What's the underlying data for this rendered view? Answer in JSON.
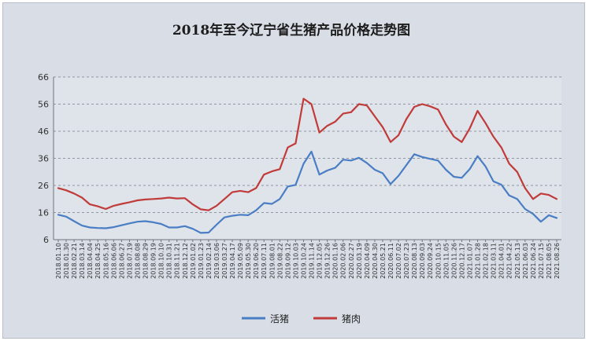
{
  "chart_data": {
    "type": "line",
    "title": "2018年至今辽宁省生猪产品价格走势图",
    "ylim": [
      6,
      66
    ],
    "yticks": [
      6,
      16,
      26,
      36,
      46,
      56,
      66
    ],
    "grid": true,
    "legend_position": "bottom",
    "x": [
      "2018.01.10",
      "2018.01.30",
      "2018.02.21",
      "2018.03.14",
      "2018.04.04",
      "2018.04.25",
      "2018.05.16",
      "2018.06.06",
      "2018.06.27",
      "2018.07.19",
      "2018.08.08",
      "2018.08.29",
      "2018.09.19",
      "2018.10.10",
      "2018.10.31",
      "2018.11.21",
      "2018.12.12",
      "2019.01.02",
      "2019.01.23",
      "2019.02.14",
      "2019.03.06",
      "2019.03.27",
      "2019.04.17",
      "2019.05.09",
      "2019.05.30",
      "2019.06.20",
      "2019.07.11",
      "2019.08.01",
      "2019.08.22",
      "2019.09.12",
      "2019.10.03",
      "2019.10.24",
      "2019.11.14",
      "2019.12.05",
      "2019.12.26",
      "2020.01.16",
      "2020.02.06",
      "2020.02.27",
      "2020.03.19",
      "2020.04.09",
      "2020.04.30",
      "2020.05.21",
      "2020.06.11",
      "2020.07.02",
      "2020.07.23",
      "2020.08.13",
      "2020.09.03",
      "2020.09.24",
      "2020.10.15",
      "2020.11.05",
      "2020.11.26",
      "2020.12.17",
      "2021.01.07",
      "2021.01.28",
      "2021.02.18",
      "2021.03.11",
      "2021.04.01",
      "2021.04.22",
      "2021.05.13",
      "2021.06.03",
      "2021.06.24",
      "2021.07.15",
      "2021.08.05",
      "2021.08.26"
    ],
    "series": [
      {
        "name": "活猪",
        "color": "#4a7ec4",
        "values": [
          15.2,
          14.5,
          12.8,
          11.2,
          10.5,
          10.3,
          10.2,
          10.6,
          11.3,
          12.0,
          12.6,
          12.8,
          12.4,
          11.8,
          10.5,
          10.5,
          11.0,
          10.0,
          8.5,
          8.6,
          11.5,
          14.2,
          14.8,
          15.2,
          15.0,
          16.8,
          19.5,
          19.2,
          21.0,
          25.6,
          26.2,
          34.0,
          38.5,
          30.0,
          31.5,
          32.5,
          35.5,
          35.2,
          36.2,
          34.3,
          31.8,
          30.5,
          26.5,
          29.5,
          33.5,
          37.5,
          36.5,
          35.8,
          35.2,
          31.8,
          29.2,
          28.8,
          32.0,
          36.8,
          33.0,
          27.5,
          26.3,
          22.3,
          21.0,
          17.3,
          15.5,
          12.6,
          15.0,
          14.0
        ]
      },
      {
        "name": "猪肉",
        "color": "#c03b39",
        "values": [
          25.0,
          24.2,
          23.0,
          21.5,
          19.0,
          18.3,
          17.3,
          18.5,
          19.2,
          19.8,
          20.5,
          20.8,
          21.0,
          21.2,
          21.5,
          21.2,
          21.3,
          19.0,
          17.2,
          16.8,
          18.5,
          21.0,
          23.5,
          24.0,
          23.5,
          25.0,
          30.0,
          31.2,
          32.0,
          40.0,
          41.5,
          58.0,
          56.0,
          45.5,
          48.0,
          49.5,
          52.5,
          53.0,
          56.0,
          55.5,
          51.5,
          47.5,
          42.0,
          44.5,
          50.5,
          55.0,
          56.0,
          55.2,
          54.0,
          48.5,
          44.0,
          42.0,
          47.0,
          53.5,
          49.0,
          44.0,
          40.0,
          34.0,
          31.0,
          25.0,
          21.0,
          23.0,
          22.5,
          21.0
        ]
      }
    ]
  }
}
